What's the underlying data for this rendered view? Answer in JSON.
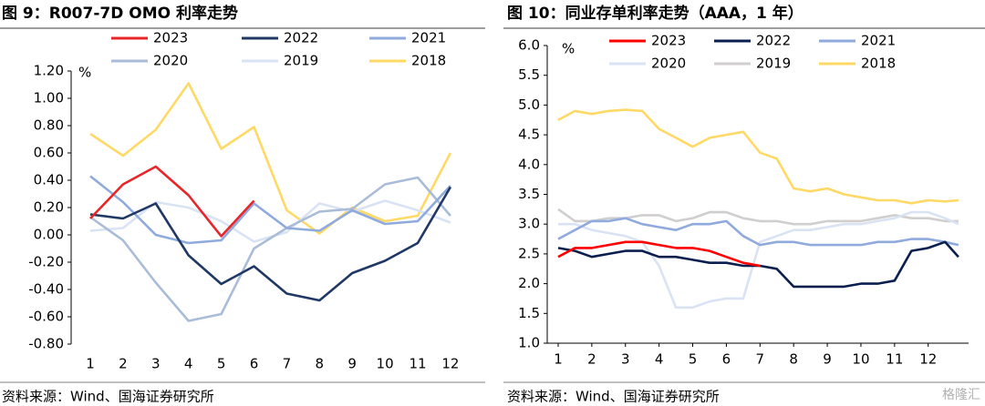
{
  "chart_data": [
    {
      "type": "line",
      "title": "图 9：R007-7D OMO 利率走势",
      "unit_label": "%",
      "categories": [
        "1",
        "2",
        "3",
        "4",
        "5",
        "6",
        "7",
        "8",
        "9",
        "10",
        "11",
        "12"
      ],
      "ylim": [
        -0.8,
        1.2
      ],
      "yticks": [
        {
          "value": -0.8,
          "label": "-0.80"
        },
        {
          "value": -0.6,
          "label": "-0.60"
        },
        {
          "value": -0.4,
          "label": "-0.40"
        },
        {
          "value": -0.2,
          "label": "-0.20"
        },
        {
          "value": 0,
          "label": "0.00"
        },
        {
          "value": 0.2,
          "label": "0.20"
        },
        {
          "value": 0.4,
          "label": "0.40"
        },
        {
          "value": 0.6,
          "label": "0.60"
        },
        {
          "value": 0.8,
          "label": "0.80"
        },
        {
          "value": 1.0,
          "label": "1.00"
        },
        {
          "value": 1.2,
          "label": "1.20"
        }
      ],
      "series": [
        {
          "name": "2023",
          "color": "#e8262a",
          "values": [
            0.12,
            0.37,
            0.5,
            0.29,
            -0.01,
            0.25,
            null,
            null,
            null,
            null,
            null,
            null
          ]
        },
        {
          "name": "2022",
          "color": "#1f3864",
          "values": [
            0.15,
            0.12,
            0.23,
            -0.15,
            -0.36,
            -0.23,
            -0.43,
            -0.48,
            -0.28,
            -0.19,
            -0.06,
            0.35
          ]
        },
        {
          "name": "2021",
          "color": "#8faadc",
          "values": [
            0.43,
            0.24,
            0.0,
            -0.06,
            -0.04,
            0.23,
            0.05,
            0.03,
            0.18,
            0.08,
            0.1,
            0.36
          ]
        },
        {
          "name": "2020",
          "color": "#a9bcd8",
          "values": [
            0.13,
            -0.04,
            -0.35,
            -0.63,
            -0.58,
            -0.1,
            0.05,
            0.17,
            0.19,
            0.37,
            0.42,
            0.14
          ]
        },
        {
          "name": "2019",
          "color": "#dae3f3",
          "values": [
            0.03,
            0.05,
            0.24,
            0.2,
            0.1,
            -0.05,
            0.02,
            0.23,
            0.17,
            0.25,
            0.18,
            0.09
          ]
        },
        {
          "name": "2018",
          "color": "#ffd966",
          "values": [
            0.74,
            0.58,
            0.77,
            1.11,
            0.63,
            0.79,
            0.18,
            0.01,
            0.2,
            0.1,
            0.14,
            0.6
          ]
        }
      ]
    },
    {
      "type": "line",
      "title": "图 10：同业存单利率走势（AAA，1 年）",
      "unit_label": "%",
      "x": [
        1,
        1.5,
        2,
        2.5,
        3,
        3.5,
        4,
        4.5,
        5,
        5.5,
        6,
        6.5,
        7,
        7.5,
        8,
        8.5,
        9,
        9.5,
        10,
        10.5,
        11,
        11.5,
        12,
        12.5,
        12.9
      ],
      "xlim": [
        0.675,
        13.2
      ],
      "xticks": [
        1,
        2,
        3,
        4,
        5,
        6,
        7,
        8,
        9,
        10,
        11,
        12
      ],
      "ylim": [
        1,
        6
      ],
      "yticks": [
        {
          "value": 1,
          "label": "1.0"
        },
        1.5,
        {
          "value": 2,
          "label": "2.0"
        },
        2.5,
        {
          "value": 3,
          "label": "3.0"
        },
        3.5,
        {
          "value": 4,
          "label": "4.0"
        },
        4.5,
        {
          "value": 5,
          "label": "5.0"
        },
        5.5,
        {
          "value": 6,
          "label": "6.0"
        }
      ],
      "series": [
        {
          "name": "2023",
          "color": "#ff0000",
          "values": [
            2.45,
            2.6,
            2.6,
            2.65,
            2.7,
            2.7,
            2.65,
            2.6,
            2.6,
            2.55,
            2.45,
            2.35,
            2.3,
            null,
            null,
            null,
            null,
            null,
            null,
            null,
            null,
            null,
            null,
            null,
            null
          ]
        },
        {
          "name": "2022",
          "color": "#0b1f4f",
          "values": [
            2.6,
            2.55,
            2.45,
            2.5,
            2.55,
            2.55,
            2.45,
            2.45,
            2.4,
            2.35,
            2.35,
            2.3,
            2.3,
            2.25,
            1.95,
            1.95,
            1.95,
            1.95,
            2.0,
            2.0,
            2.05,
            2.55,
            2.6,
            2.7,
            2.45
          ]
        },
        {
          "name": "2021",
          "color": "#8faadc",
          "values": [
            2.75,
            2.9,
            3.05,
            3.05,
            3.1,
            3.0,
            2.95,
            2.9,
            3.0,
            3.0,
            3.05,
            2.8,
            2.65,
            2.7,
            2.7,
            2.65,
            2.65,
            2.65,
            2.65,
            2.7,
            2.7,
            2.75,
            2.75,
            2.7,
            2.65
          ]
        },
        {
          "name": "2020",
          "color": "#dae3f3",
          "values": [
            3.0,
            3.0,
            2.9,
            2.85,
            2.8,
            2.7,
            2.3,
            1.6,
            1.6,
            1.7,
            1.75,
            1.75,
            2.7,
            2.8,
            2.9,
            2.9,
            2.95,
            3.0,
            3.0,
            3.05,
            3.1,
            3.2,
            3.2,
            3.1,
            3.0
          ]
        },
        {
          "name": "2019",
          "color": "#d0cece",
          "values": [
            3.25,
            3.05,
            3.05,
            3.1,
            3.1,
            3.15,
            3.15,
            3.05,
            3.1,
            3.2,
            3.2,
            3.1,
            3.05,
            3.05,
            3.0,
            3.0,
            3.05,
            3.05,
            3.05,
            3.1,
            3.15,
            3.1,
            3.1,
            3.05,
            3.05
          ]
        },
        {
          "name": "2018",
          "color": "#ffd966",
          "values": [
            4.75,
            4.9,
            4.85,
            4.9,
            4.92,
            4.9,
            4.6,
            4.45,
            4.3,
            4.45,
            4.5,
            4.55,
            4.2,
            4.1,
            3.6,
            3.55,
            3.6,
            3.5,
            3.45,
            3.4,
            3.4,
            3.35,
            3.4,
            3.38,
            3.4
          ]
        }
      ]
    }
  ],
  "footer": [
    "资料来源：Wind、国海证券研究所",
    "资料来源：Wind、国海证券研究所"
  ],
  "watermark": "格隆汇"
}
